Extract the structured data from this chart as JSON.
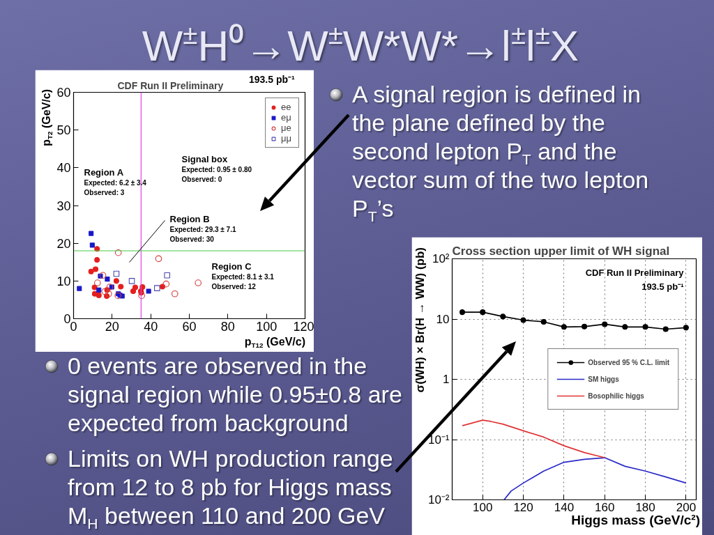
{
  "chart_data": [
    {
      "type": "other",
      "title": "W$^{±}$H⁰→W$^{±}$W*W*→l$^{±}$l$^{±}$X",
      "annotations": [
        "A signal region is defined in the plane defined by the second lepton P$_{T}$ and the vector sum of the two lepton P$_{T}$’s",
        "0 events are observed in the signal region while 0.95±0.8 are expected from background",
        "Limits on WH production range from 12 to 8 pb for Higgs mass M$_{H}$ between 110 and 200 GeV"
      ]
    },
    {
      "type": "scatter",
      "title": "CDF Run II Preliminary",
      "subtitle": "193.5 pb⁻¹",
      "xlabel": "p$_{T12}$ (GeV/c)",
      "ylabel": "p$_{T2}$ (GeV/c)",
      "xlim": [
        0,
        120
      ],
      "ylim": [
        0,
        60
      ],
      "xticks": [
        0,
        20,
        40,
        60,
        80,
        100,
        120
      ],
      "yticks": [
        0,
        10,
        20,
        30,
        40,
        50,
        60
      ],
      "legend": "top right",
      "ref_lines": [
        {
          "axis": "x",
          "value": 35,
          "color": "#e040e8"
        },
        {
          "axis": "y",
          "value": 18,
          "color": "#44cc44"
        }
      ],
      "annotations": [
        "Region A\nExpected: 6.2 ± 3.4\nObserved: 3",
        "Signal box\nExpected: 0.95 ± 0.80\nObserved: 0",
        "Region B\nExpected: 29.3 ± 7.1\nObserved: 30",
        "Region C\nExpected: 8.1 ± 3.1\nObserved: 12"
      ],
      "series": [
        {
          "name": "ee",
          "color": "#e41e1e",
          "marker": "circle",
          "x": [
            12.2,
            12.2,
            11.4,
            9.1,
            10.9,
            11.0,
            13.1,
            17.4,
            17.2,
            22.2,
            24.5,
            30.9,
            32.0,
            34.9,
            35.1,
            35.7,
            46.1
          ],
          "values": [
            18.5,
            15.6,
            13.1,
            12.5,
            8.3,
            6.6,
            6.2,
            7.6,
            6.0,
            10.0,
            8.5,
            7.3,
            8.3,
            7.3,
            6.9,
            8.4,
            8.5
          ]
        },
        {
          "name": "eμ",
          "color": "#1818c8",
          "marker": "square",
          "x": [
            9.1,
            9.7,
            3.0,
            13.9,
            17.5,
            13.1,
            19.8,
            23.2,
            24.1,
            25.2,
            38.9
          ],
          "values": [
            22.6,
            19.5,
            8.0,
            11.3,
            10.5,
            7.6,
            8.4,
            6.6,
            6.2,
            6.0,
            7.3
          ]
        },
        {
          "name": "μe",
          "color": "#d23c3c",
          "marker": "circle-open",
          "x": [
            23.2,
            44.1,
            15.2,
            12.4,
            18.8,
            16.2,
            18.2,
            23.0,
            35.3,
            48.0,
            52.5,
            64.6
          ],
          "values": [
            17.5,
            15.9,
            11.5,
            9.5,
            8.4,
            7.2,
            6.6,
            6.1,
            6.1,
            9.2,
            6.6,
            9.5
          ]
        },
        {
          "name": "μμ",
          "color": "#4848b4",
          "marker": "square-open",
          "x": [
            22.2,
            30.2,
            48.5,
            43.3
          ],
          "values": [
            11.9,
            10.0,
            11.5,
            8.1
          ]
        }
      ]
    },
    {
      "type": "line",
      "title": "Cross section upper limit of WH signal",
      "xlabel": "Higgs mass (GeV/c²)",
      "ylabel": "σ(WH) × Br(H → WW) (pb)",
      "log": "y",
      "xlim": [
        85,
        205
      ],
      "ylim": [
        0.01,
        100
      ],
      "xticks": [
        100,
        120,
        140,
        160,
        180,
        200
      ],
      "yticks": [
        {
          "value": 0.01,
          "label": "10⁻²"
        },
        {
          "value": 0.1,
          "label": "10⁻¹"
        },
        1,
        10,
        {
          "value": 100,
          "label": "10²"
        }
      ],
      "grid": true,
      "legend": "right",
      "annotations": [
        "CDF Run II Preliminary",
        "193.5 pb⁻¹"
      ],
      "series": [
        {
          "name": "Observed 95 % C.L. limit",
          "color": "#000000",
          "marker": "circle",
          "x": [
            90,
            100,
            110,
            120,
            130,
            140,
            150,
            160,
            170,
            180,
            190,
            200
          ],
          "values": [
            13,
            13,
            11,
            9.6,
            9.0,
            7.4,
            7.5,
            8.2,
            7.4,
            7.4,
            6.8,
            7.2
          ]
        },
        {
          "name": "SM higgs",
          "color": "#2a2ac8",
          "x": [
            110.5,
            114,
            120,
            130,
            140,
            150,
            160,
            170,
            180,
            190,
            200
          ],
          "values": [
            0.01,
            0.014,
            0.019,
            0.03,
            0.042,
            0.047,
            0.05,
            0.036,
            0.03,
            0.024,
            0.019
          ]
        },
        {
          "name": "Bosophilic higgs",
          "color": "#e03434",
          "x": [
            90,
            100,
            104,
            110,
            120,
            130,
            140,
            150,
            160
          ],
          "values": [
            0.17,
            0.21,
            0.2,
            0.18,
            0.14,
            0.11,
            0.079,
            0.061,
            0.05
          ]
        }
      ]
    }
  ]
}
